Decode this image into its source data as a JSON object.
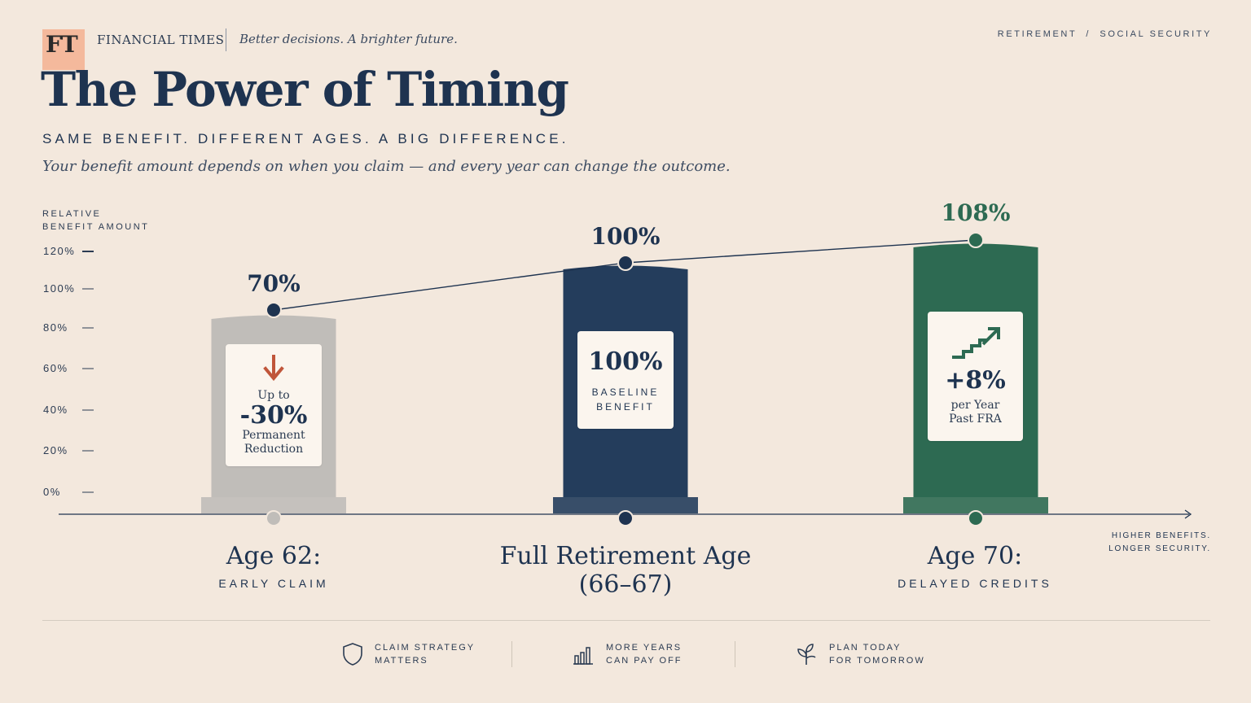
{
  "masthead": {
    "logo": "FT",
    "brand": "FINANCIAL TIMES",
    "tagline": "Better decisions. A brighter future.",
    "breadcrumb": "RETIREMENT  /  SOCIAL SECURITY"
  },
  "title": "The Power of Timing",
  "subtitle": "SAME BENEFIT. DIFFERENT AGES. A BIG DIFFERENCE.",
  "description": "Your benefit amount depends on when you claim — and every year can change the outcome.",
  "axis": {
    "ylabel_line1": "RELATIVE",
    "ylabel_line2": "BENEFIT AMOUNT"
  },
  "chart_data": {
    "type": "bar",
    "categories": [
      "Age 62:",
      "Full Retirement Age (66–67)",
      "Age 70:"
    ],
    "values": [
      70,
      100,
      108
    ],
    "value_labels": [
      "70%",
      "100%",
      "108%"
    ],
    "ylabel": "RELATIVE BENEFIT AMOUNT",
    "yticks": [
      "0%",
      "20%",
      "40%",
      "60%",
      "80%",
      "100%",
      "120%"
    ],
    "ytick_values": [
      0,
      20,
      40,
      60,
      80,
      100,
      120
    ],
    "ylim": [
      0,
      120
    ],
    "colors": [
      "#c0bdb9",
      "#243d5c",
      "#2d6a52"
    ],
    "label_colors": [
      "#1e3350",
      "#1e3350",
      "#2d6a52"
    ],
    "connector_line": true,
    "grid": false
  },
  "callouts": {
    "early": {
      "top": "Up to",
      "value": "-30%",
      "bottom1": "Permanent",
      "bottom2": "Reduction",
      "icon": "arrow-down-icon",
      "icon_color": "#c0553a"
    },
    "fra": {
      "value": "100%",
      "caps1": "BASELINE",
      "caps2": "BENEFIT"
    },
    "delayed": {
      "value": "+8%",
      "bottom1": "per Year",
      "bottom2": "Past FRA",
      "icon": "stairs-up-arrow-icon",
      "icon_color": "#2d6a52"
    }
  },
  "ages": {
    "early": {
      "label": "Age 62:",
      "sub": "EARLY CLAIM"
    },
    "fra": {
      "label1": "Full Retirement Age",
      "label2": "(66–67)"
    },
    "delayed": {
      "label": "Age 70:",
      "sub": "DELAYED CREDITS"
    }
  },
  "note": {
    "line1": "HIGHER BENEFITS.",
    "line2": "LONGER SECURITY."
  },
  "footer": [
    {
      "icon": "shield-icon",
      "line1": "CLAIM STRATEGY",
      "line2": "MATTERS"
    },
    {
      "icon": "bar-chart-icon",
      "line1": "MORE YEARS",
      "line2": "CAN PAY OFF"
    },
    {
      "icon": "sprout-icon",
      "line1": "PLAN TODAY",
      "line2": "FOR TOMORROW"
    }
  ]
}
